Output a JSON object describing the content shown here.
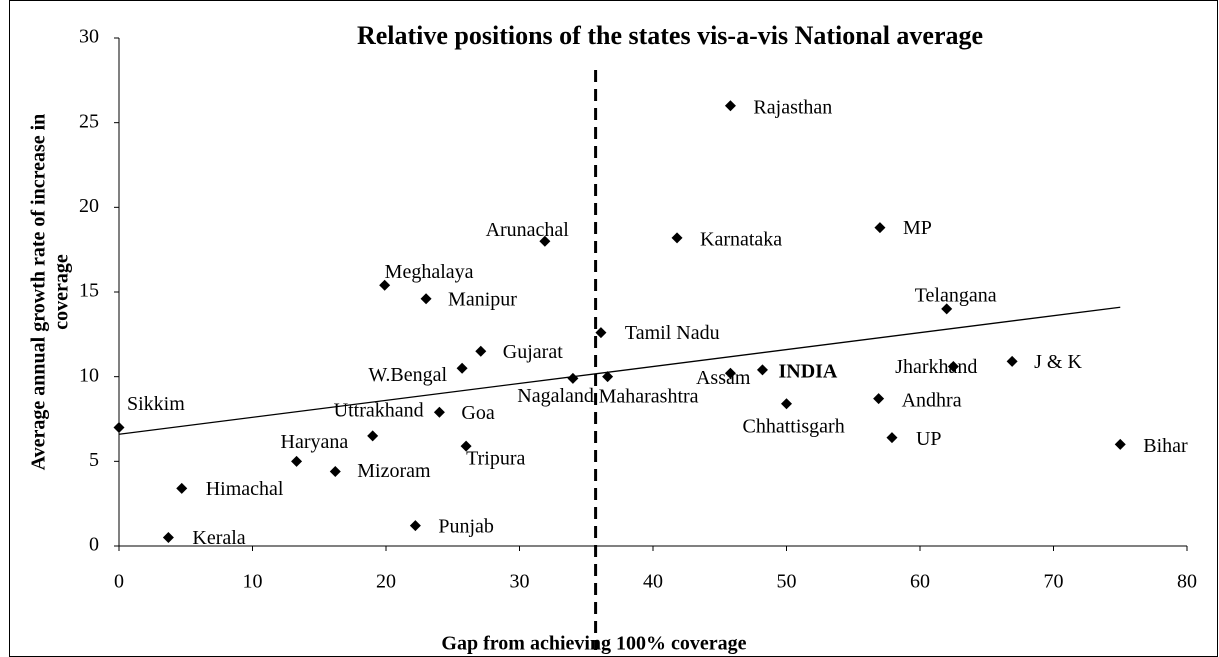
{
  "chart_data": {
    "type": "scatter",
    "title": "Relative positions of the states vis-a-vis National average",
    "xlabel": "Gap from achieving 100% coverage",
    "ylabel": [
      "Average annual growth rate of increase in",
      "coverage"
    ],
    "labels": [
      "Sikkim",
      "Kerala",
      "Himachal",
      "Haryana",
      "Mizoram",
      "Uttrakhand",
      "Meghalaya",
      "Punjab",
      "Manipur",
      "Goa",
      "W.Bengal",
      "Tripura",
      "Gujarat",
      "Arunachal",
      "Nagaland",
      "Tamil Nadu",
      "Maharashtra",
      "Karnataka",
      "Rajasthan",
      "Assam",
      "INDIA",
      "Chhattisgarh",
      "MP",
      "Andhra",
      "UP",
      "Telangana",
      "Jharkhand",
      "J & K",
      "Bihar"
    ],
    "x": [
      0,
      3.7,
      4.7,
      13.3,
      16.2,
      19.0,
      19.9,
      22.2,
      23.0,
      24.0,
      25.7,
      26.0,
      27.1,
      31.9,
      34.0,
      36.1,
      36.6,
      41.8,
      45.8,
      45.8,
      48.2,
      50.0,
      57.0,
      56.9,
      57.9,
      62.0,
      62.5,
      66.9,
      75.0
    ],
    "y": [
      7.0,
      0.5,
      3.4,
      5.0,
      4.4,
      6.5,
      15.4,
      1.2,
      14.6,
      7.9,
      10.5,
      5.9,
      11.5,
      18.0,
      9.9,
      12.6,
      10.0,
      18.2,
      26.0,
      10.2,
      10.4,
      8.4,
      18.8,
      8.7,
      6.4,
      14.0,
      10.6,
      10.9,
      6.0
    ],
    "color": "#000000",
    "trendline": {
      "x": [
        0,
        75
      ],
      "y": [
        6.6,
        14.1
      ]
    },
    "reference_x": 35.7,
    "xlim": [
      0,
      80
    ],
    "xticks": [
      0,
      10,
      20,
      30,
      40,
      50,
      60,
      70,
      80
    ],
    "ylim": [
      0,
      30
    ],
    "yticks": [
      0,
      5,
      10,
      15,
      20,
      25,
      30
    ],
    "grid": false
  }
}
